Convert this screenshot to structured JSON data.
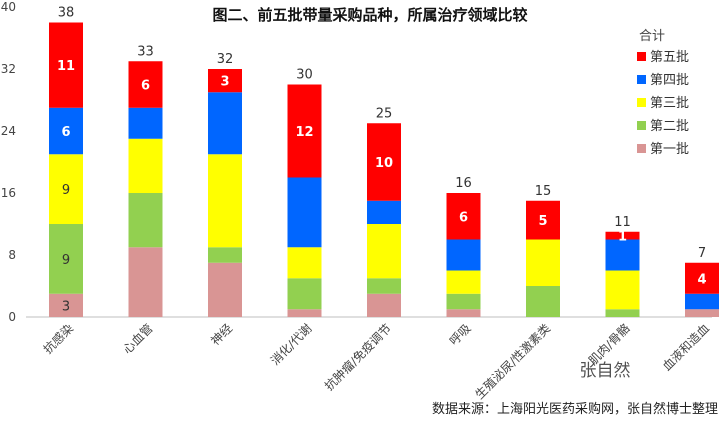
{
  "chart_data": {
    "type": "bar",
    "stacked": true,
    "title": "图二、前五批带量采购品种，所属治疗领域比较",
    "xlabel": "",
    "ylabel": "",
    "ylim": [
      0,
      40
    ],
    "yticks": [
      0,
      8,
      16,
      24,
      32,
      40
    ],
    "grid": false,
    "legend_title": "合计",
    "legend_position": "top-right",
    "categories": [
      "抗感染",
      "心血管",
      "神经",
      "消化/代谢",
      "抗肿瘤/免疫调节",
      "呼吸",
      "生殖泌尿/性激素类",
      "肌肉/骨骼",
      "血液和造血"
    ],
    "totals": [
      38,
      33,
      32,
      30,
      25,
      16,
      15,
      11,
      7
    ],
    "series": [
      {
        "name": "第一批",
        "color": "#D99594",
        "values": [
          3,
          9,
          7,
          1,
          3,
          1,
          0,
          0,
          1
        ],
        "labels": [
          "3",
          "",
          "",
          "",
          "",
          "",
          "",
          "",
          ""
        ],
        "label_color": "#333333"
      },
      {
        "name": "第二批",
        "color": "#92D050",
        "values": [
          9,
          7,
          2,
          4,
          2,
          2,
          4,
          1,
          0
        ],
        "labels": [
          "9",
          "",
          "",
          "",
          "",
          "",
          "",
          "",
          ""
        ],
        "label_color": "#333333"
      },
      {
        "name": "第三批",
        "color": "#FFFF00",
        "values": [
          9,
          7,
          12,
          4,
          7,
          3,
          6,
          5,
          0
        ],
        "labels": [
          "9",
          "",
          "",
          "",
          "",
          "",
          "",
          "",
          ""
        ],
        "label_color": "#333333"
      },
      {
        "name": "第四批",
        "color": "#0066FF",
        "values": [
          6,
          4,
          8,
          9,
          3,
          4,
          0,
          4,
          2
        ],
        "labels": [
          "6",
          "",
          "",
          "",
          "",
          "",
          "",
          "",
          ""
        ],
        "label_color": "#ffffff"
      },
      {
        "name": "第五批",
        "color": "#FF0000",
        "values": [
          11,
          6,
          3,
          12,
          10,
          6,
          5,
          1,
          4
        ],
        "labels": [
          "11",
          "6",
          "3",
          "12",
          "10",
          "6",
          "5",
          "1",
          "4"
        ],
        "label_color": "#ffffff"
      }
    ]
  },
  "footer": "数据来源：上海阳光医药采购网，张自然博士整理",
  "watermark": "张自然"
}
